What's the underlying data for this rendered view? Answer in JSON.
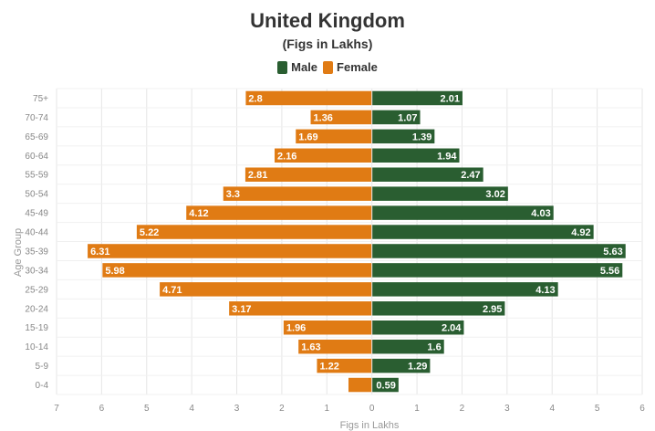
{
  "chart_data": {
    "type": "bar",
    "orientation": "horizontal-population-pyramid",
    "title": "United Kingdom",
    "subtitle": "(Figs in Lakhs)",
    "xlabel": "Figs in Lakhs",
    "ylabel": "Age Group",
    "categories": [
      "75+",
      "70-74",
      "65-69",
      "60-64",
      "55-59",
      "50-54",
      "45-49",
      "40-44",
      "35-39",
      "30-34",
      "25-29",
      "20-24",
      "15-19",
      "10-14",
      "5-9",
      "0-4"
    ],
    "series": [
      {
        "name": "Male",
        "color": "#2a5e31",
        "values": [
          2.01,
          1.07,
          1.39,
          1.94,
          2.47,
          3.02,
          4.03,
          4.92,
          5.63,
          5.56,
          4.13,
          2.95,
          2.04,
          1.6,
          1.29,
          0.59
        ]
      },
      {
        "name": "Female",
        "color": "#e07b14",
        "values": [
          2.8,
          1.36,
          1.69,
          2.16,
          2.81,
          3.3,
          4.12,
          5.22,
          6.31,
          5.98,
          4.71,
          3.17,
          1.96,
          1.63,
          1.22,
          0.52
        ]
      }
    ],
    "female_labels": [
      "2.8",
      "1.36",
      "1.69",
      "2.16",
      "2.81",
      "3.3",
      "4.12",
      "5.22",
      "6.31",
      "5.98",
      "4.71",
      "3.17",
      "1.96",
      "1.63",
      "1.22",
      ""
    ],
    "male_labels": [
      "2.01",
      "1.07",
      "1.39",
      "1.94",
      "2.47",
      "3.02",
      "4.03",
      "4.92",
      "5.63",
      "5.56",
      "4.13",
      "2.95",
      "2.04",
      "1.6",
      "1.29",
      "0.59"
    ],
    "xticks": [
      "7",
      "6",
      "5",
      "4",
      "3",
      "2",
      "1",
      "0",
      "1",
      "2",
      "3",
      "4",
      "5",
      "6"
    ],
    "xlim": [
      -7,
      6
    ],
    "grid": true,
    "legend_position": "top"
  }
}
